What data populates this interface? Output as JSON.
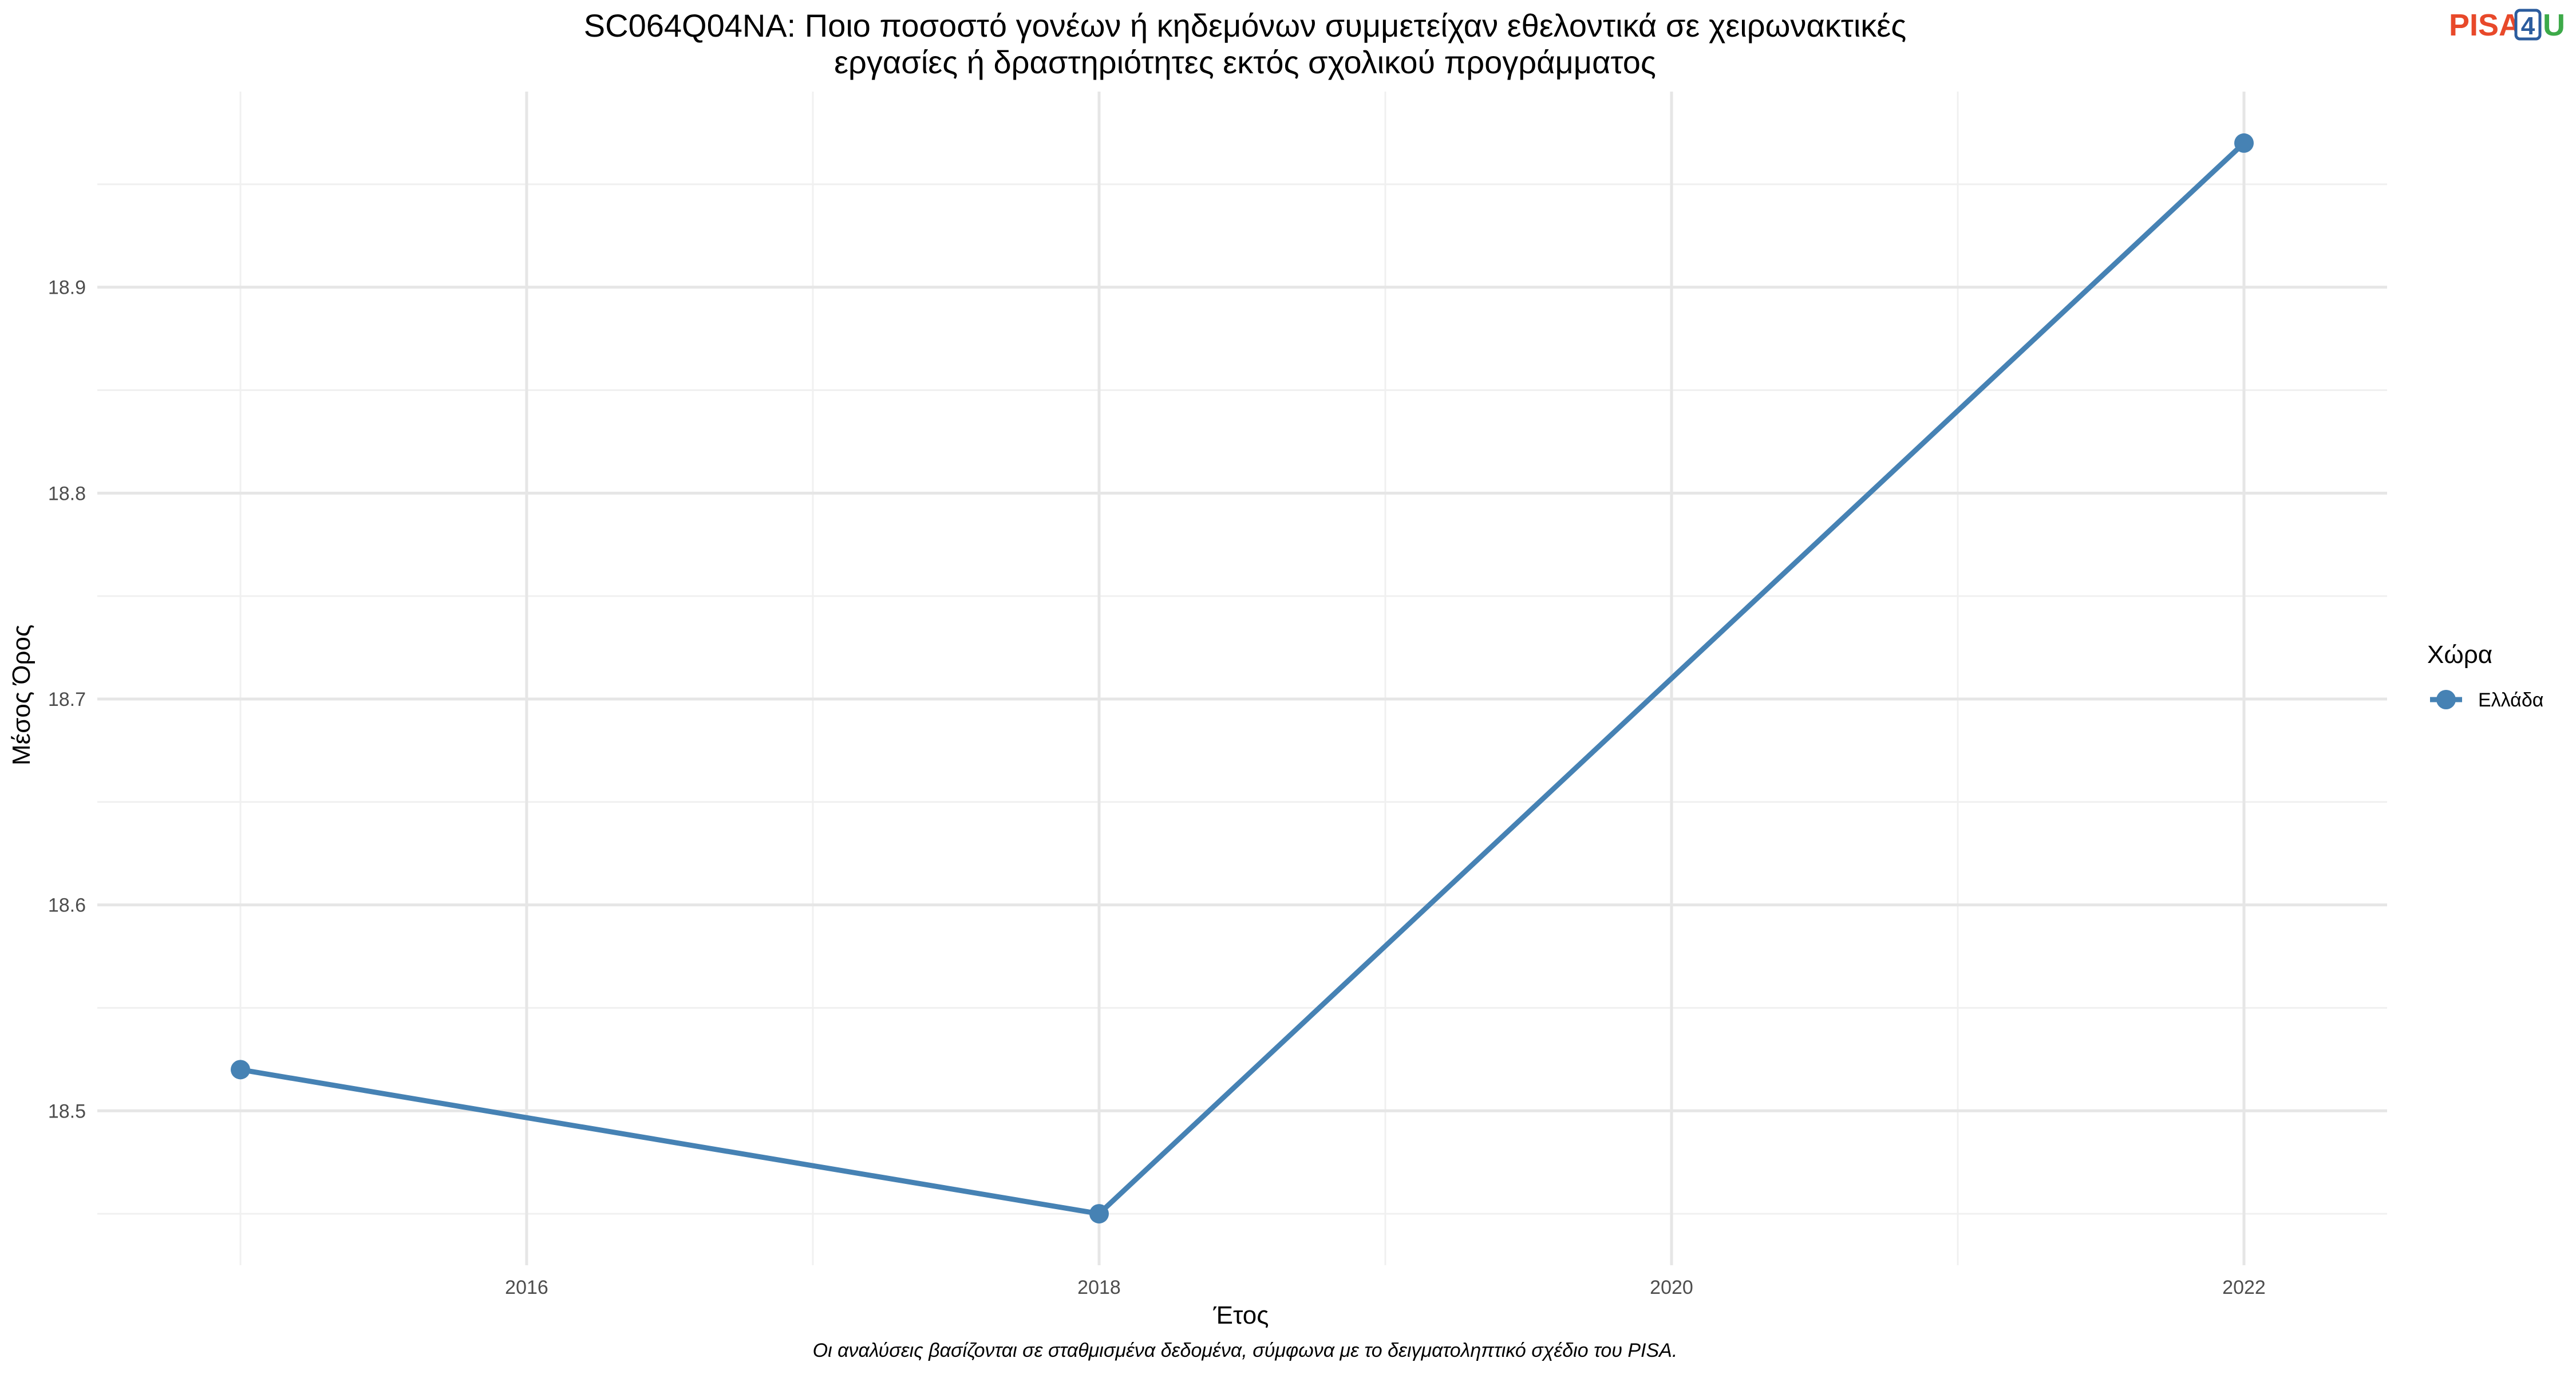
{
  "chart_data": {
    "type": "line",
    "title_lines": [
      "SC064Q04NA: Ποιο ποσοστό γονέων ή κηδεμόνων συμμετείχαν εθελοντικά σε χειρωνακτικές",
      "εργασίες ή δραστηριότητες εκτός σχολικού προγράμματος"
    ],
    "xlabel": "Έτος",
    "ylabel": "Μέσος Όρος",
    "x": [
      2015,
      2018,
      2022
    ],
    "series": [
      {
        "name": "Ελλάδα",
        "values": [
          18.52,
          18.45,
          18.97
        ],
        "color": "#4682B4"
      }
    ],
    "xlim": [
      2014.5,
      2022.5
    ],
    "ylim": [
      18.425,
      18.995
    ],
    "x_ticks": [
      2016,
      2018,
      2020,
      2022
    ],
    "y_ticks": [
      18.5,
      18.6,
      18.7,
      18.8,
      18.9
    ],
    "grid": true,
    "legend_title": "Χώρα",
    "legend_position": "right",
    "caption": "Οι αναλύσεις βασίζονται σε σταθμισμένα δεδομένα, σύμφωνα με το δειγματοληπτικό σχέδιο του PISA."
  },
  "logo": {
    "part1": "PISA",
    "part2": "4",
    "part3": "U",
    "color1": "#E8492A",
    "color2": "#2B5C9E",
    "color3": "#3DAA49"
  }
}
